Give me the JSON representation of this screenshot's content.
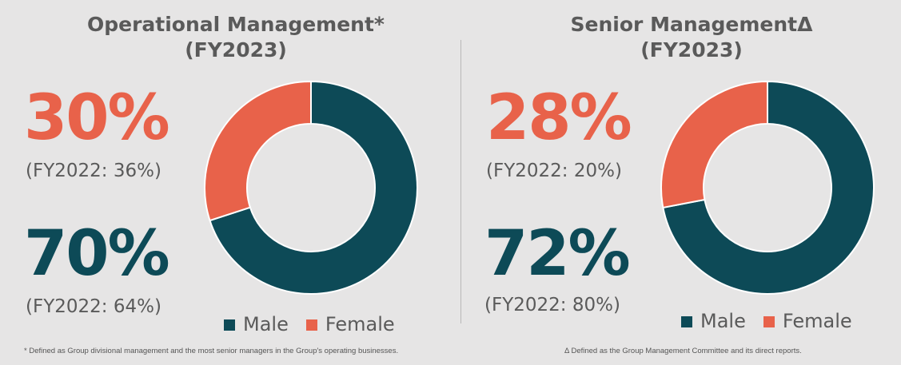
{
  "colors": {
    "male": "#0d4a57",
    "female": "#e8624a"
  },
  "chart_data": [
    {
      "type": "pie",
      "title": "Operational Management*",
      "subtitle": "(FY2023)",
      "categories": [
        "Male",
        "Female"
      ],
      "values": [
        70,
        30
      ],
      "labels": {
        "female_pct": "30%",
        "female_prior": "(FY2022: 36%)",
        "male_pct": "70%",
        "male_prior": "(FY2022: 64%)"
      },
      "legend": [
        "Male",
        "Female"
      ],
      "footnote": "* Defined as Group divisional management and the most senior managers in the Group's operating businesses."
    },
    {
      "type": "pie",
      "title": "Senior ManagementΔ",
      "subtitle": "(FY2023)",
      "categories": [
        "Male",
        "Female"
      ],
      "values": [
        72,
        28
      ],
      "labels": {
        "female_pct": "28%",
        "female_prior": "(FY2022: 20%)",
        "male_pct": "72%",
        "male_prior": "(FY2022: 80%)"
      },
      "legend": [
        "Male",
        "Female"
      ],
      "footnote": "Δ Defined as the Group Management Committee and its direct reports."
    }
  ]
}
